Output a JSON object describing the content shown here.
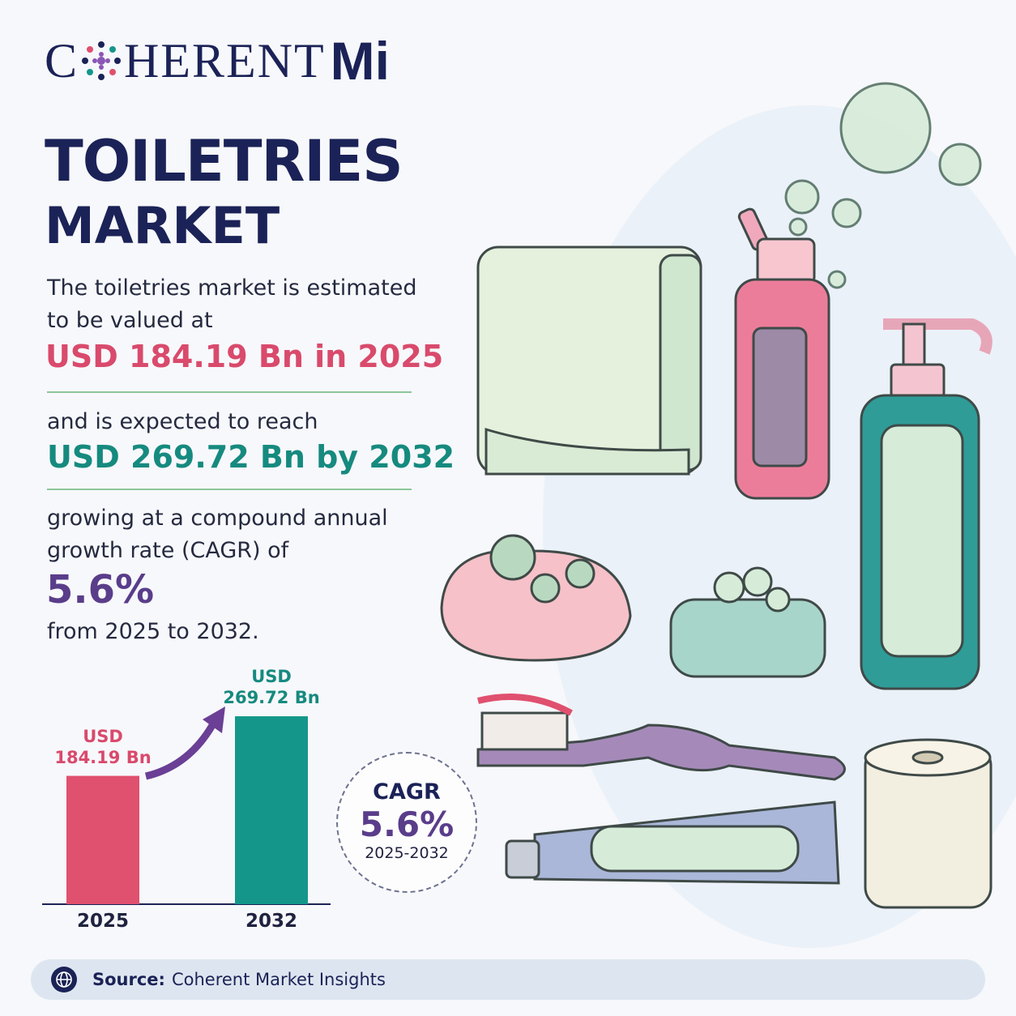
{
  "logo": {
    "start": "C",
    "end": "HERENT",
    "mark": "Mi"
  },
  "title": "TOILETRIES",
  "subtitle": "MARKET",
  "intro": "The toiletries market is estimated to be valued at",
  "value_2025": "USD 184.19 Bn in 2025",
  "expected": "and is expected to reach",
  "value_2032": "USD 269.72 Bn by 2032",
  "growing": "growing at a compound annual growth rate (CAGR) of",
  "cagr": "5.6%",
  "period": "from 2025 to 2032.",
  "badge": {
    "title": "CAGR",
    "value": "5.6%",
    "years": "2025-2032"
  },
  "source": {
    "label": "Source:",
    "text": "Coherent Market Insights"
  },
  "chart_data": {
    "type": "bar",
    "categories": [
      "2025",
      "2032"
    ],
    "values": [
      184.19,
      269.72
    ],
    "value_labels": [
      "USD 184.19 Bn",
      "USD 269.72 Bn"
    ],
    "colors": [
      "#e0506f",
      "#14978a"
    ]
  }
}
